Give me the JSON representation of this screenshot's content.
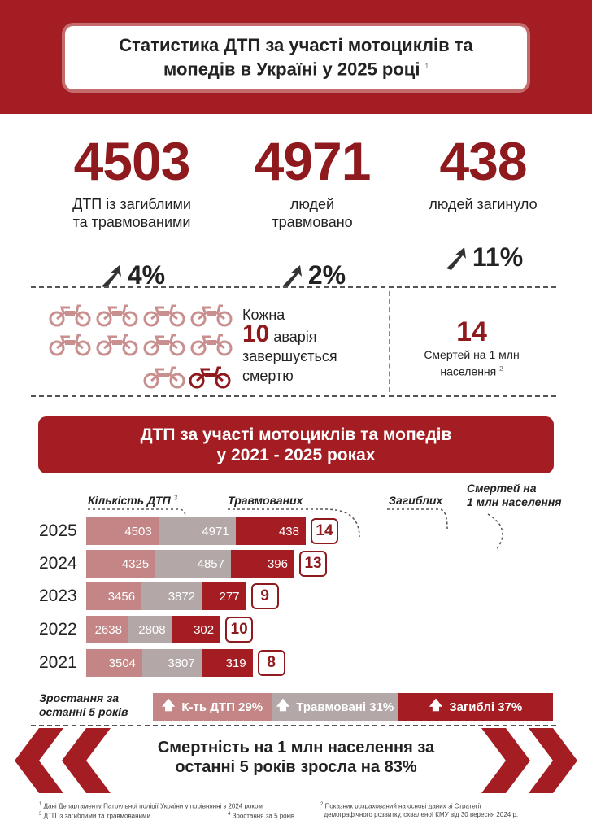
{
  "title": {
    "line1": "Статистика ДТП за участі мотоциклів та",
    "line2": "мопедів в Україні у 2025 році",
    "sup": "1"
  },
  "stats": [
    {
      "value": "4503",
      "label1": "ДТП із загиблими",
      "label2": "та травмованими",
      "change": "4%"
    },
    {
      "value": "4971",
      "label1": "людей",
      "label2": "травмовано",
      "change": "2%"
    },
    {
      "value": "438",
      "label1": "людей загинуло",
      "label2": "",
      "change": "11%"
    }
  ],
  "every": {
    "line1": "Кожна",
    "num": "10",
    "word": "аварія",
    "line3": "завершується",
    "line4": "смертю"
  },
  "per_million": {
    "value": "14",
    "label1": "Смертей на 1 млн",
    "label2": "населення",
    "sup": "2"
  },
  "section": {
    "line1": "ДТП за участі мотоциклів та мопедів",
    "line2": "у 2021 - 2025 роках"
  },
  "headers": {
    "dtp": "Кількість ДТП",
    "dtp_sup": "3",
    "injured": "Травмованих",
    "killed": "Загиблих",
    "rate1": "Смертей на",
    "rate2": "1 млн населення"
  },
  "chart_data": {
    "type": "bar",
    "categories": [
      "2025",
      "2024",
      "2023",
      "2022",
      "2021"
    ],
    "series": [
      {
        "name": "Кількість ДТП",
        "values": [
          4503,
          4325,
          3456,
          2638,
          3504
        ]
      },
      {
        "name": "Травмованих",
        "values": [
          4971,
          4857,
          3872,
          2808,
          3807
        ]
      },
      {
        "name": "Загиблих",
        "values": [
          438,
          396,
          277,
          302,
          319
        ]
      },
      {
        "name": "Смертей на 1 млн населення",
        "values": [
          14,
          13,
          9,
          10,
          8
        ]
      }
    ]
  },
  "rows": [
    {
      "year": "2025",
      "dtp": "4503",
      "inj": "4971",
      "kill": "438",
      "rate": "14"
    },
    {
      "year": "2024",
      "dtp": "4325",
      "inj": "4857",
      "kill": "396",
      "rate": "13"
    },
    {
      "year": "2023",
      "dtp": "3456",
      "inj": "3872",
      "kill": "277",
      "rate": "9"
    },
    {
      "year": "2022",
      "dtp": "2638",
      "inj": "2808",
      "kill": "302",
      "rate": "10"
    },
    {
      "year": "2021",
      "dtp": "3504",
      "inj": "3807",
      "kill": "319",
      "rate": "8"
    }
  ],
  "growth": {
    "label1": "Зростання за",
    "label2": "останні 5 років",
    "g1": "К-ть ДТП 29%",
    "g2": "Травмовані 31%",
    "g3": "Загиблі 37%"
  },
  "conclusion": {
    "line1": "Смертність на  1 млн населення за",
    "line2": "останні 5 років зросла на 83%"
  },
  "footnotes": {
    "f1": "Дані Департаменту Патрульної поліції України у порівнянні з 2024  роком",
    "f3": "ДТП із загиблими та травмованими",
    "f4": "Зростання за 5 років",
    "f2a": "Показник розрахований на основі даних зі Стратегії",
    "f2b": "демографічного розвитку, схваленої КМУ від 30 вересня 2024 р."
  },
  "colors": {
    "brand": "#a31d22",
    "dtp": "#c38585",
    "injured": "#b3a7a7",
    "killed": "#a31d22"
  }
}
